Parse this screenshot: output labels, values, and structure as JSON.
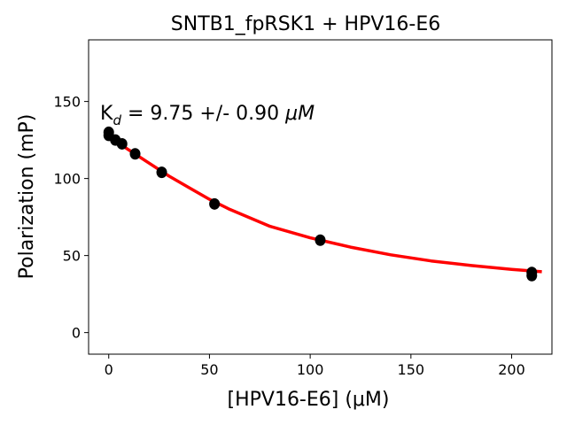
{
  "chart_data": {
    "type": "scatter",
    "title": "SNTB1_fpRSK1 + HPV16-E6",
    "xlabel": "[HPV16-E6] (μM)",
    "ylabel": "Polarization (mP)",
    "xlim": [
      -10,
      220
    ],
    "ylim": [
      -14,
      190
    ],
    "xticks": [
      0,
      50,
      100,
      150,
      200
    ],
    "yticks": [
      0,
      50,
      100,
      150
    ],
    "grid": false,
    "annotation": {
      "prefix": "K",
      "subscript": "d",
      "text": " = 9.75 +/- 0.90 ",
      "unit": "μM"
    },
    "series": [
      {
        "kind": "points",
        "color": "#000000",
        "x": [
          0,
          0,
          3.3,
          6.6,
          13.1,
          26.3,
          52.5,
          105,
          210,
          210
        ],
        "y": [
          130,
          128,
          125,
          122.5,
          116,
          104,
          83.5,
          60,
          39,
          37
        ]
      },
      {
        "kind": "fit",
        "color": "#ff0000",
        "x": [
          0,
          5,
          10,
          20,
          30,
          40,
          50,
          60,
          80,
          100,
          120,
          140,
          160,
          180,
          200,
          215
        ],
        "y": [
          127.5,
          123,
          118.5,
          110,
          101.5,
          94,
          86.5,
          80,
          69,
          61.5,
          55.5,
          50.5,
          46.5,
          43.5,
          41,
          39.5
        ]
      }
    ]
  }
}
